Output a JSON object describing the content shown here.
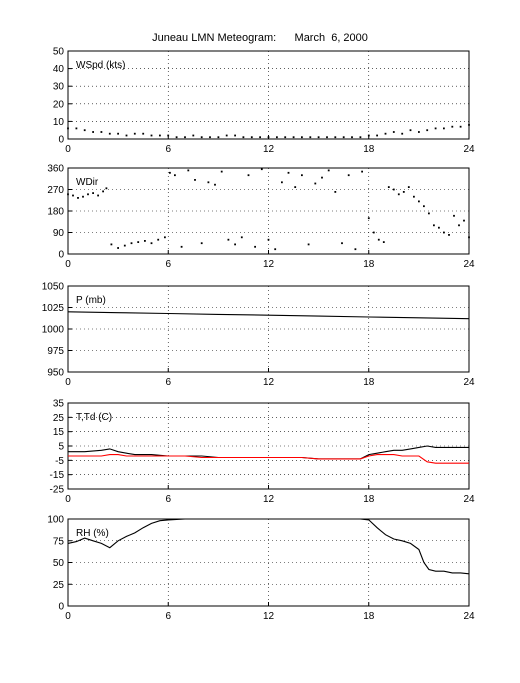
{
  "title": "Juneau LMN Meteogram:      March  6, 2000",
  "chart_data": [
    {
      "type": "scatter",
      "panel_label": "WSpd (kts)",
      "ylim": [
        0,
        50
      ],
      "yticks": [
        0,
        10,
        20,
        30,
        40,
        50
      ],
      "xlim": [
        0,
        24
      ],
      "xticks": [
        0,
        6,
        12,
        18,
        24
      ],
      "grid": true,
      "series": [
        {
          "color": "#000000",
          "x": [
            0,
            0.5,
            1,
            1.5,
            2,
            2.5,
            3,
            3.5,
            4,
            4.5,
            5,
            5.5,
            6,
            6.5,
            7,
            7.5,
            8,
            8.5,
            9,
            9.5,
            10,
            10.5,
            11,
            11.5,
            12,
            12.5,
            13,
            13.5,
            14,
            14.5,
            15,
            15.5,
            16,
            16.5,
            17,
            17.5,
            18,
            18.5,
            19,
            19.5,
            20,
            20.5,
            21,
            21.5,
            22,
            22.5,
            23,
            23.5,
            24
          ],
          "y": [
            6,
            6,
            5,
            4,
            4,
            3,
            3,
            2,
            3,
            3,
            2,
            2,
            2,
            1,
            1,
            2,
            1,
            1,
            1,
            2,
            2,
            1,
            1,
            1,
            1,
            1,
            1,
            1,
            1,
            1,
            1,
            1,
            1,
            1,
            1,
            1,
            2,
            2,
            3,
            4,
            3,
            5,
            4,
            5,
            6,
            6,
            7,
            7,
            8
          ]
        }
      ]
    },
    {
      "type": "scatter",
      "panel_label": "WDir",
      "ylim": [
        0,
        360
      ],
      "yticks": [
        0,
        90,
        180,
        270,
        360
      ],
      "xlim": [
        0,
        24
      ],
      "xticks": [
        0,
        6,
        12,
        18,
        24
      ],
      "grid": true,
      "series": [
        {
          "color": "#000000",
          "x": [
            0,
            0.3,
            0.6,
            0.9,
            1.2,
            1.5,
            1.8,
            2.1,
            2.3,
            2.6,
            3,
            3.4,
            3.8,
            4.2,
            4.6,
            5,
            5.4,
            5.8,
            6.1,
            6.4,
            6.8,
            7.2,
            7.6,
            8,
            8.4,
            8.8,
            9.2,
            9.6,
            10,
            10.4,
            10.8,
            11.2,
            11.6,
            12,
            12.4,
            12.8,
            13.2,
            13.6,
            14,
            14.4,
            14.8,
            15.2,
            15.6,
            16,
            16.4,
            16.8,
            17.2,
            17.6,
            18,
            18.3,
            18.6,
            18.9,
            19.2,
            19.5,
            19.8,
            20.1,
            20.4,
            20.7,
            21,
            21.3,
            21.6,
            21.9,
            22.2,
            22.5,
            22.8,
            23.1,
            23.4,
            23.7,
            24
          ],
          "y": [
            250,
            245,
            235,
            240,
            250,
            255,
            245,
            262,
            275,
            40,
            25,
            35,
            45,
            50,
            55,
            45,
            60,
            70,
            340,
            330,
            30,
            350,
            310,
            45,
            300,
            290,
            345,
            60,
            40,
            70,
            330,
            30,
            355,
            60,
            20,
            300,
            340,
            280,
            330,
            40,
            295,
            320,
            350,
            260,
            45,
            330,
            20,
            345,
            150,
            90,
            60,
            50,
            280,
            270,
            250,
            260,
            280,
            240,
            220,
            200,
            170,
            120,
            110,
            90,
            80,
            160,
            120,
            140,
            70
          ]
        }
      ]
    },
    {
      "type": "line",
      "panel_label": "P (mb)",
      "ylim": [
        950,
        1050
      ],
      "yticks": [
        950,
        975,
        1000,
        1025,
        1050
      ],
      "xlim": [
        0,
        24
      ],
      "xticks": [
        0,
        6,
        12,
        18,
        24
      ],
      "grid": true,
      "series": [
        {
          "color": "#000000",
          "x": [
            0,
            3,
            6,
            9,
            12,
            15,
            18,
            21,
            24
          ],
          "y": [
            1020,
            1019,
            1018,
            1017,
            1016,
            1015,
            1014,
            1013,
            1012
          ]
        }
      ]
    },
    {
      "type": "line",
      "panel_label": "T,Td (C)",
      "ylim": [
        -25,
        35
      ],
      "yticks": [
        -25,
        -15,
        -5,
        5,
        15,
        25,
        35
      ],
      "xlim": [
        0,
        24
      ],
      "xticks": [
        0,
        6,
        12,
        18,
        24
      ],
      "grid": true,
      "series": [
        {
          "color": "#000000",
          "x": [
            0,
            1,
            2,
            2.5,
            3,
            3.5,
            4,
            5,
            6,
            7,
            8,
            9,
            10,
            11,
            12,
            13,
            14,
            15,
            16,
            17,
            17.5,
            18,
            18.5,
            19,
            19.5,
            20,
            20.5,
            21,
            21.5,
            22,
            23,
            24
          ],
          "y": [
            1,
            1,
            2,
            3,
            1,
            0,
            -1,
            -1,
            -2,
            -2,
            -2,
            -3,
            -3,
            -3,
            -3,
            -3,
            -3,
            -4,
            -4,
            -4,
            -4,
            -1,
            0,
            1,
            2,
            2,
            3,
            4,
            5,
            4,
            4,
            4
          ]
        },
        {
          "color": "#ff0000",
          "x": [
            0,
            1,
            2,
            2.5,
            3,
            3.5,
            4,
            5,
            6,
            7,
            8,
            9,
            10,
            11,
            12,
            13,
            14,
            15,
            16,
            17,
            17.5,
            18,
            18.5,
            19,
            19.5,
            20,
            20.5,
            21,
            21.5,
            22,
            23,
            24
          ],
          "y": [
            -2,
            -2,
            -2,
            -1,
            -1,
            -2,
            -2,
            -2,
            -2,
            -2,
            -3,
            -3,
            -3,
            -3,
            -3,
            -3,
            -3,
            -4,
            -4,
            -4,
            -4,
            -2,
            -1,
            -1,
            -1,
            -2,
            -2,
            -2,
            -6,
            -7,
            -7,
            -7
          ]
        }
      ]
    },
    {
      "type": "line",
      "panel_label": "RH (%)",
      "ylim": [
        0,
        100
      ],
      "yticks": [
        0,
        25,
        50,
        75,
        100
      ],
      "xlim": [
        0,
        24
      ],
      "xticks": [
        0,
        6,
        12,
        18,
        24
      ],
      "grid": true,
      "series": [
        {
          "color": "#000000",
          "x": [
            0,
            0.5,
            1,
            1.5,
            2,
            2.5,
            3,
            3.5,
            4,
            4.5,
            5,
            5.5,
            6,
            7,
            8,
            10,
            12,
            14,
            16,
            17.5,
            18,
            18.5,
            19,
            19.5,
            20,
            20.5,
            21,
            21.3,
            21.6,
            22,
            22.5,
            23,
            23.5,
            24
          ],
          "y": [
            72,
            74,
            78,
            75,
            72,
            67,
            75,
            80,
            84,
            90,
            95,
            98,
            99,
            100,
            100,
            100,
            100,
            100,
            100,
            100,
            99,
            90,
            82,
            77,
            75,
            72,
            65,
            50,
            42,
            40,
            40,
            38,
            38,
            37
          ]
        }
      ]
    }
  ]
}
